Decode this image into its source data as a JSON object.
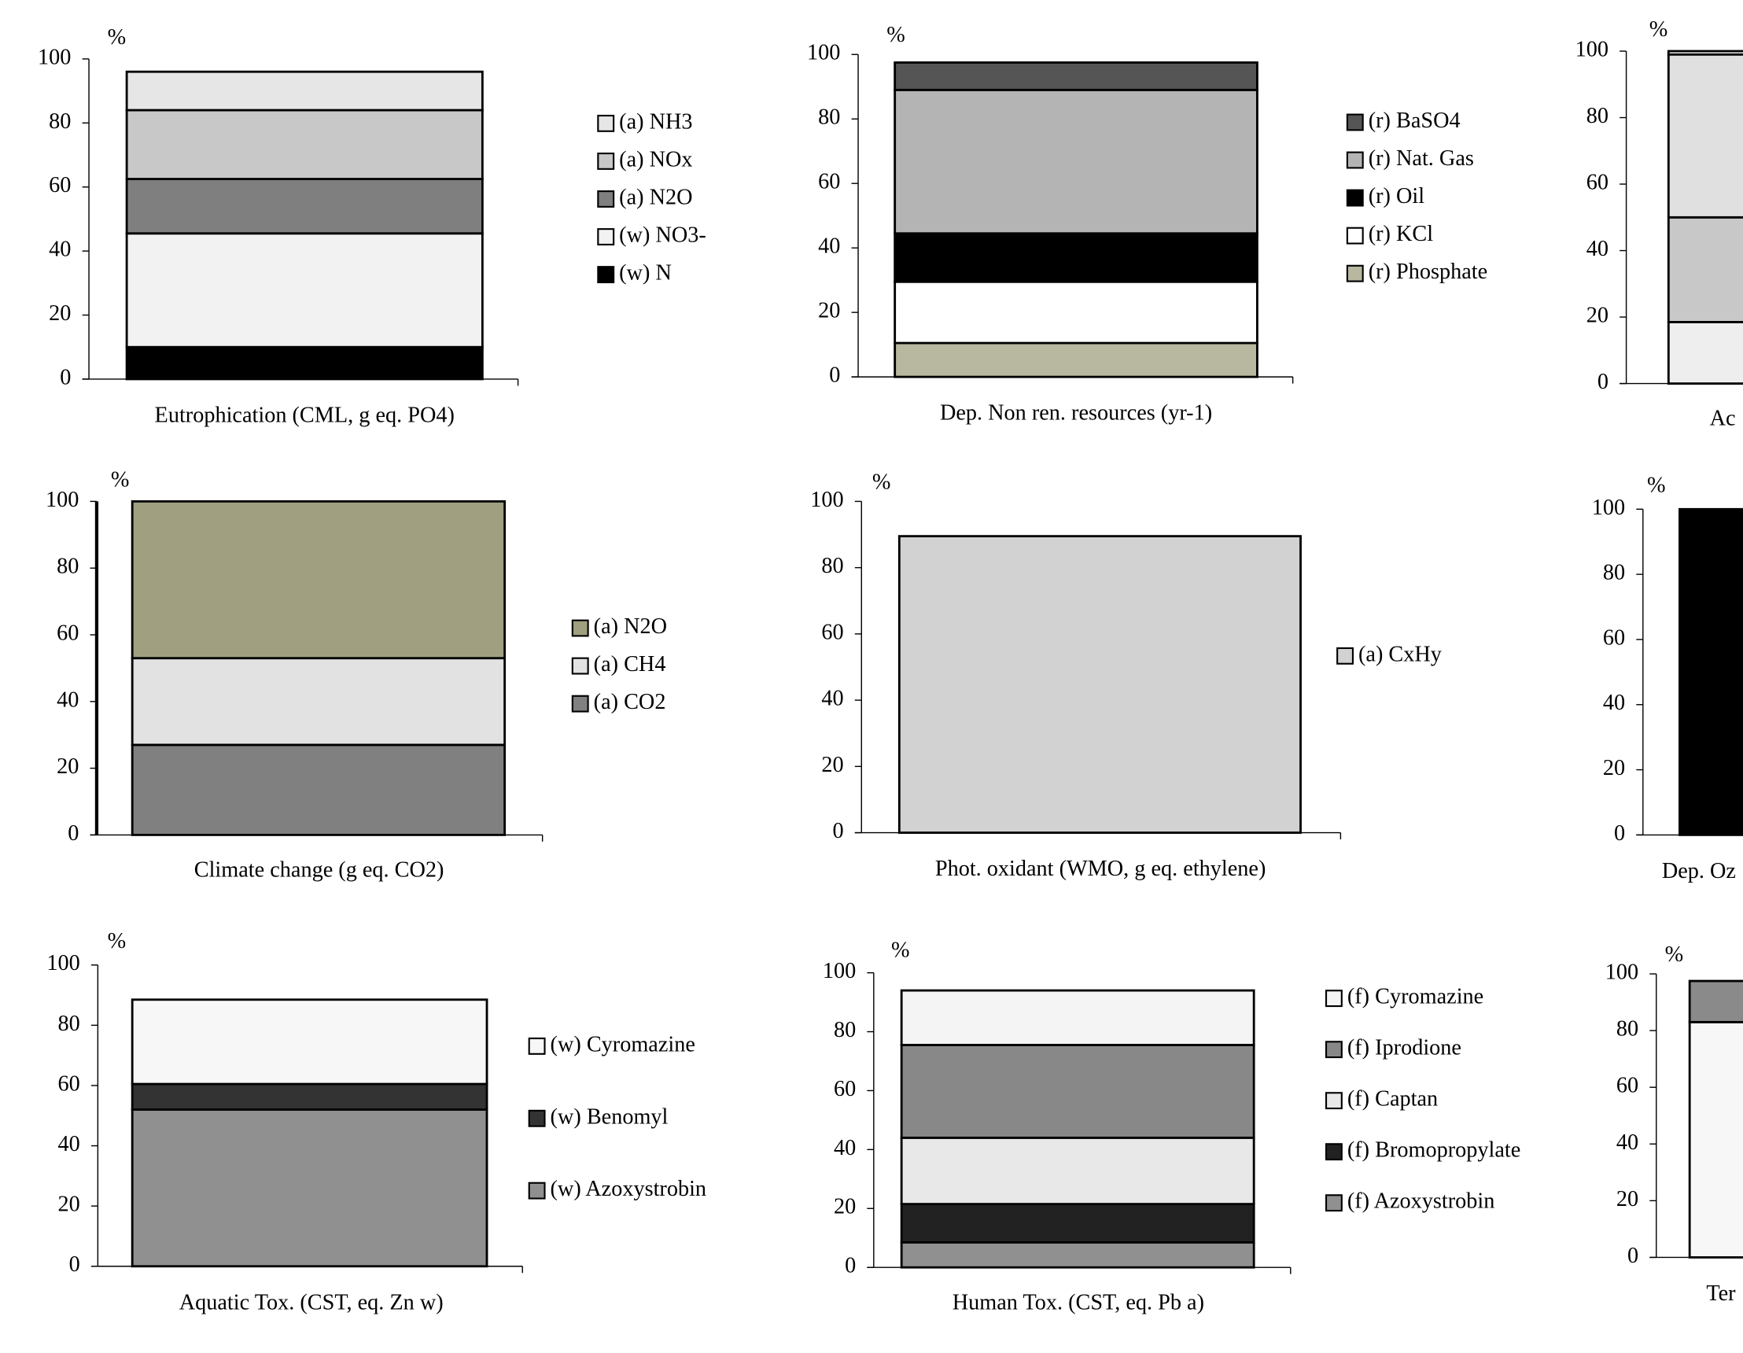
{
  "chart_data": [
    {
      "type": "bar",
      "stacked": true,
      "title": "Eutrophication (CML, g eq. PO4)",
      "ylabel": "%",
      "categories": [
        null
      ],
      "ylim": [
        0,
        100
      ],
      "yticks": [
        0,
        20,
        40,
        60,
        80,
        100
      ],
      "series": [
        {
          "name": "(a) NH3",
          "color": "#e6e6e6",
          "values": [
            12
          ]
        },
        {
          "name": "(a) NOx",
          "color": "#c8c8c8",
          "values": [
            21.5
          ]
        },
        {
          "name": "(a) N2O",
          "color": "#7f7f7f",
          "values": [
            17
          ]
        },
        {
          "name": "(w) NO3-",
          "color": "#f2f2f2",
          "values": [
            35.5
          ]
        },
        {
          "name": "(w) N",
          "color": "#000000",
          "values": [
            10
          ]
        }
      ]
    },
    {
      "type": "bar",
      "stacked": true,
      "title": "Dep. Non ren. resources (yr-1)",
      "ylabel": "%",
      "categories": [
        null
      ],
      "ylim": [
        0,
        100
      ],
      "yticks": [
        0,
        20,
        40,
        60,
        80,
        100
      ],
      "series": [
        {
          "name": "(r) BaSO4",
          "color": "#555555",
          "values": [
            8.5
          ]
        },
        {
          "name": "(r) Nat. Gas",
          "color": "#b4b4b4",
          "values": [
            44.5
          ]
        },
        {
          "name": "(r) Oil",
          "color": "#000000",
          "values": [
            15
          ]
        },
        {
          "name": "(r) KCl",
          "color": "#ffffff",
          "values": [
            19
          ]
        },
        {
          "name": "(r) Phosphate",
          "color": "#b8b8a0",
          "values": [
            10.5
          ]
        }
      ]
    },
    {
      "type": "bar",
      "stacked": true,
      "title": "Ac",
      "ylabel": "%",
      "categories": [
        null
      ],
      "ylim": [
        0,
        100
      ],
      "yticks": [
        0,
        20,
        40,
        60,
        80,
        100
      ],
      "series": [
        {
          "color": "#ffffff",
          "values": [
            1
          ]
        },
        {
          "color": "#e0e0e0",
          "values": [
            49
          ]
        },
        {
          "color": "#c8c8c8",
          "values": [
            31.5
          ]
        },
        {
          "color": "#eeeeee",
          "values": [
            18.5
          ]
        }
      ]
    },
    {
      "type": "bar",
      "stacked": true,
      "title": "Climate change (g eq. CO2)",
      "ylabel": "%",
      "categories": [
        null
      ],
      "ylim": [
        0,
        100
      ],
      "yticks": [
        0,
        20,
        40,
        60,
        80,
        100
      ],
      "series": [
        {
          "name": "(a) N2O",
          "color": "#a0a080",
          "values": [
            47
          ]
        },
        {
          "name": "(a) CH4",
          "color": "#e2e2e2",
          "values": [
            26
          ]
        },
        {
          "name": "(a) CO2",
          "color": "#808080",
          "values": [
            27
          ]
        }
      ]
    },
    {
      "type": "bar",
      "stacked": true,
      "title": "Phot. oxidant (WMO, g eq. ethylene)",
      "ylabel": "%",
      "categories": [
        null
      ],
      "ylim": [
        0,
        100
      ],
      "yticks": [
        0,
        20,
        40,
        60,
        80,
        100
      ],
      "series": [
        {
          "name": "(a) CxHy",
          "color": "#d2d2d2",
          "values": [
            89.5
          ]
        }
      ]
    },
    {
      "type": "bar",
      "stacked": true,
      "title": "Dep. Oz",
      "ylabel": "%",
      "categories": [
        null
      ],
      "ylim": [
        0,
        100
      ],
      "yticks": [
        0,
        20,
        40,
        60,
        80,
        100
      ],
      "series": [
        {
          "color": "#000000",
          "values": [
            100
          ]
        }
      ]
    },
    {
      "type": "bar",
      "stacked": true,
      "title": "Aquatic Tox. (CST, eq. Zn w)",
      "ylabel": "%",
      "categories": [
        null
      ],
      "ylim": [
        0,
        100
      ],
      "yticks": [
        0,
        20,
        40,
        60,
        80,
        100
      ],
      "series": [
        {
          "name": "(w) Cyromazine",
          "color": "#f7f7f7",
          "values": [
            28
          ]
        },
        {
          "name": "(w) Benomyl",
          "color": "#333333",
          "values": [
            8.5
          ]
        },
        {
          "name": "(w) Azoxystrobin",
          "color": "#909090",
          "values": [
            52
          ]
        }
      ]
    },
    {
      "type": "bar",
      "stacked": true,
      "title": "Human Tox. (CST, eq. Pb a)",
      "ylabel": "%",
      "categories": [
        null
      ],
      "ylim": [
        0,
        100
      ],
      "yticks": [
        0,
        20,
        40,
        60,
        80,
        100
      ],
      "series": [
        {
          "name": "(f) Cyromazine",
          "color": "#f4f4f4",
          "values": [
            18.5
          ]
        },
        {
          "name": "(f) Iprodione",
          "color": "#888888",
          "values": [
            31.5
          ]
        },
        {
          "name": "(f) Captan",
          "color": "#e8e8e8",
          "values": [
            22.5
          ]
        },
        {
          "name": "(f) Bromopropylate",
          "color": "#222222",
          "values": [
            13
          ]
        },
        {
          "name": "(f) Azoxystrobin",
          "color": "#909090",
          "values": [
            8.5
          ]
        }
      ]
    },
    {
      "type": "bar",
      "stacked": true,
      "title": "Ter",
      "ylabel": "%",
      "categories": [
        null
      ],
      "ylim": [
        0,
        100
      ],
      "yticks": [
        0,
        20,
        40,
        60,
        80,
        100
      ],
      "series": [
        {
          "color": "#8a8a8a",
          "values": [
            14.5
          ]
        },
        {
          "color": "#f7f7f7",
          "values": [
            83
          ]
        }
      ]
    }
  ]
}
